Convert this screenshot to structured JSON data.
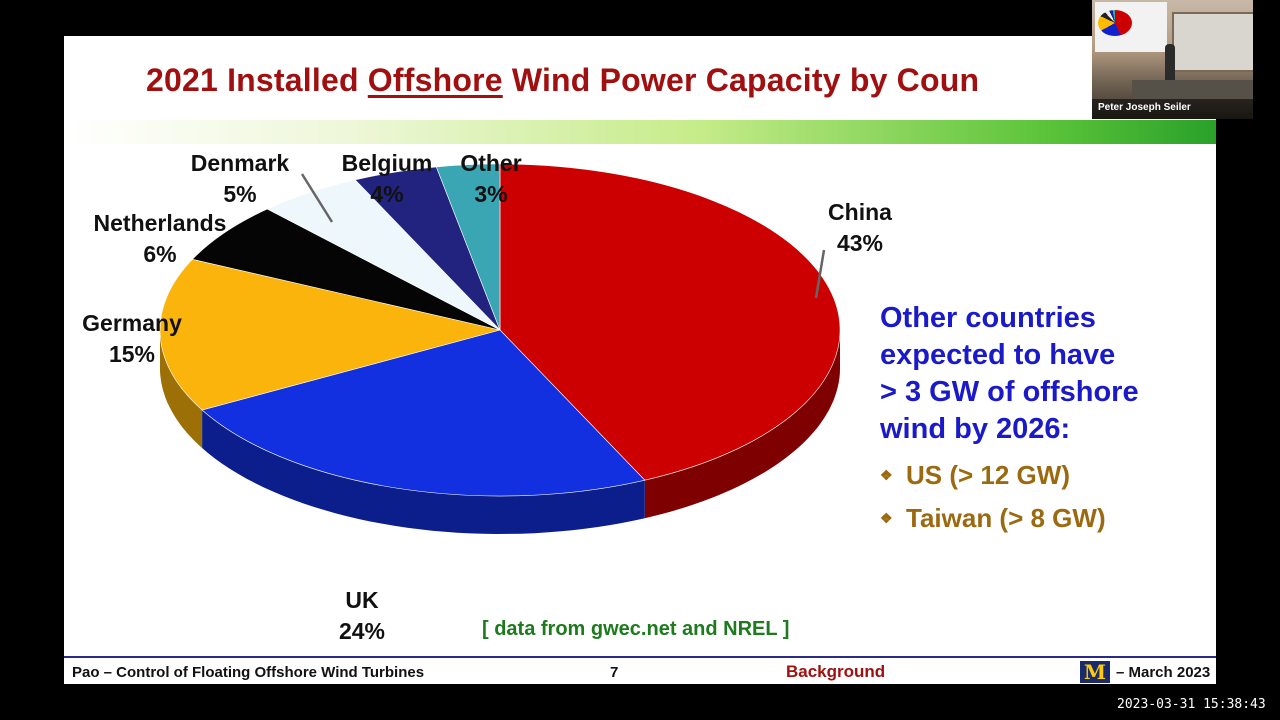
{
  "slide": {
    "title_pre": "2021 Installed ",
    "title_underlined": "Offshore",
    "title_post": " Wind Power Capacity by Coun",
    "source_note": "[ data from gwec.net and NREL ]",
    "callout": {
      "heading_lines": [
        "Other countries",
        "expected to have",
        "> 3 GW of offshore",
        "wind by 2026:"
      ],
      "bullets": [
        "US (> 12 GW)",
        "Taiwan (> 8 GW)"
      ],
      "bullet_icon": "diamond-bullet-icon"
    },
    "footer": {
      "left": "Pao – Control of Floating Offshore Wind Turbines",
      "page": "7",
      "section": "Background",
      "logo": "M",
      "date": "– March 2023"
    }
  },
  "chart_data": {
    "type": "pie",
    "title": "2021 Installed Offshore Wind Power Capacity by Coun",
    "slices": [
      {
        "label": "China",
        "percent_label": "43%",
        "value": 43,
        "color": "#cc0000"
      },
      {
        "label": "UK",
        "percent_label": "24%",
        "value": 24,
        "color": "#1230e0"
      },
      {
        "label": "Germany",
        "percent_label": "15%",
        "value": 15,
        "color": "#fbb40c"
      },
      {
        "label": "Netherlands",
        "percent_label": "6%",
        "value": 6,
        "color": "#050505"
      },
      {
        "label": "Denmark",
        "percent_label": "5%",
        "value": 5,
        "color": "#eef7fb"
      },
      {
        "label": "Belgium",
        "percent_label": "4%",
        "value": 4,
        "color": "#22237e"
      },
      {
        "label": "Other",
        "percent_label": "3%",
        "value": 3,
        "color": "#3aa6b4"
      }
    ]
  },
  "webcam": {
    "name": "Peter Joseph Seiler"
  },
  "timestamp": "2023-03-31  15:38:43"
}
